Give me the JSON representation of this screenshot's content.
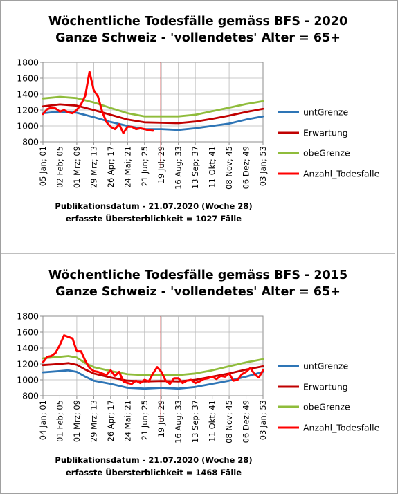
{
  "chart_data": [
    {
      "type": "line",
      "title": "Wöchentliche Todesfälle gemäss BFS - 2020",
      "subtitle": "Ganze Schweiz - 'vollendetes' Alter = 65+",
      "ylim": [
        800,
        1800
      ],
      "yticks": [
        "800",
        "1000",
        "1200",
        "1400",
        "1600",
        "1800"
      ],
      "xticks": [
        "05 Jan; 01",
        "02 Feb; 05",
        "01 Mrz; 09",
        "29 Mrz; 13",
        "26 Apr; 17",
        "24 Mai; 21",
        "21 Jun; 25",
        "19 Jul; 29",
        "16 Aug; 33",
        "13 Sep; 37",
        "11 Okt; 41",
        "08 Nov; 45",
        "06 Dez; 49",
        "03 Jan; 53"
      ],
      "x_weeks": [
        1,
        53
      ],
      "marker_week": 29,
      "grid": true,
      "legend_position": "right",
      "series": [
        {
          "name": "untGrenze",
          "color": "#2e75b6",
          "values": [
            [
              1,
              1160
            ],
            [
              5,
              1180
            ],
            [
              9,
              1165
            ],
            [
              13,
              1110
            ],
            [
              17,
              1050
            ],
            [
              21,
              1000
            ],
            [
              25,
              960
            ],
            [
              29,
              960
            ],
            [
              33,
              950
            ],
            [
              37,
              970
            ],
            [
              41,
              1000
            ],
            [
              45,
              1030
            ],
            [
              49,
              1080
            ],
            [
              53,
              1120
            ]
          ]
        },
        {
          "name": "Erwartung",
          "color": "#c00000",
          "values": [
            [
              1,
              1245
            ],
            [
              5,
              1270
            ],
            [
              9,
              1255
            ],
            [
              13,
              1200
            ],
            [
              17,
              1140
            ],
            [
              21,
              1080
            ],
            [
              25,
              1045
            ],
            [
              29,
              1040
            ],
            [
              33,
              1035
            ],
            [
              37,
              1055
            ],
            [
              41,
              1090
            ],
            [
              45,
              1130
            ],
            [
              49,
              1175
            ],
            [
              53,
              1215
            ]
          ]
        },
        {
          "name": "obeGrenze",
          "color": "#8fbc3b",
          "values": [
            [
              1,
              1345
            ],
            [
              5,
              1365
            ],
            [
              9,
              1350
            ],
            [
              13,
              1295
            ],
            [
              17,
              1225
            ],
            [
              21,
              1160
            ],
            [
              25,
              1120
            ],
            [
              29,
              1120
            ],
            [
              33,
              1120
            ],
            [
              37,
              1140
            ],
            [
              41,
              1185
            ],
            [
              45,
              1230
            ],
            [
              49,
              1275
            ],
            [
              53,
              1310
            ]
          ]
        },
        {
          "name": "Anzahl_Todesfalle",
          "color": "#ff0000",
          "values": [
            [
              1,
              1150
            ],
            [
              2,
              1210
            ],
            [
              3,
              1230
            ],
            [
              4,
              1220
            ],
            [
              5,
              1180
            ],
            [
              6,
              1200
            ],
            [
              7,
              1170
            ],
            [
              8,
              1160
            ],
            [
              9,
              1200
            ],
            [
              10,
              1270
            ],
            [
              11,
              1380
            ],
            [
              12,
              1680
            ],
            [
              13,
              1450
            ],
            [
              14,
              1370
            ],
            [
              15,
              1180
            ],
            [
              16,
              1050
            ],
            [
              17,
              990
            ],
            [
              18,
              960
            ],
            [
              19,
              1020
            ],
            [
              20,
              910
            ],
            [
              21,
              990
            ],
            [
              22,
              990
            ],
            [
              23,
              960
            ],
            [
              24,
              970
            ],
            [
              25,
              960
            ],
            [
              26,
              945
            ],
            [
              27,
              940
            ]
          ]
        }
      ]
    },
    {
      "type": "line",
      "title": "Wöchentliche Todesfälle gemäss BFS - 2015",
      "subtitle": "Ganze Schweiz - 'vollendetes' Alter = 65+",
      "ylim": [
        800,
        1800
      ],
      "yticks": [
        "800",
        "1000",
        "1200",
        "1400",
        "1600",
        "1800"
      ],
      "xticks": [
        "04 Jan; 01",
        "01 Feb; 05",
        "01 Mrz; 09",
        "29 Mrz; 13",
        "26 Apr; 17",
        "24 Mai; 21",
        "21 Jun; 25",
        "19 Jul; 29",
        "16 Aug; 33",
        "13 Sep; 37",
        "11 Okt; 41",
        "08 Nov; 45",
        "06 Dez; 49",
        "03 Jan; 53"
      ],
      "x_weeks": [
        1,
        53
      ],
      "marker_week": 29,
      "grid": true,
      "legend_position": "right",
      "series": [
        {
          "name": "untGrenze",
          "color": "#2e75b6",
          "values": [
            [
              1,
              1095
            ],
            [
              5,
              1110
            ],
            [
              7,
              1120
            ],
            [
              9,
              1100
            ],
            [
              11,
              1040
            ],
            [
              13,
              990
            ],
            [
              17,
              950
            ],
            [
              21,
              900
            ],
            [
              25,
              890
            ],
            [
              29,
              900
            ],
            [
              33,
              890
            ],
            [
              37,
              910
            ],
            [
              41,
              950
            ],
            [
              45,
              990
            ],
            [
              49,
              1040
            ],
            [
              53,
              1100
            ]
          ]
        },
        {
          "name": "Erwartung",
          "color": "#c00000",
          "values": [
            [
              1,
              1185
            ],
            [
              5,
              1200
            ],
            [
              7,
              1210
            ],
            [
              9,
              1190
            ],
            [
              11,
              1130
            ],
            [
              13,
              1080
            ],
            [
              17,
              1030
            ],
            [
              21,
              990
            ],
            [
              25,
              980
            ],
            [
              29,
              985
            ],
            [
              33,
              980
            ],
            [
              37,
              1000
            ],
            [
              41,
              1040
            ],
            [
              45,
              1080
            ],
            [
              49,
              1130
            ],
            [
              53,
              1170
            ]
          ]
        },
        {
          "name": "obeGrenze",
          "color": "#8fbc3b",
          "values": [
            [
              1,
              1270
            ],
            [
              5,
              1290
            ],
            [
              7,
              1300
            ],
            [
              9,
              1280
            ],
            [
              11,
              1210
            ],
            [
              13,
              1160
            ],
            [
              17,
              1110
            ],
            [
              21,
              1070
            ],
            [
              25,
              1060
            ],
            [
              29,
              1060
            ],
            [
              33,
              1060
            ],
            [
              37,
              1080
            ],
            [
              41,
              1120
            ],
            [
              45,
              1170
            ],
            [
              49,
              1220
            ],
            [
              53,
              1260
            ]
          ]
        },
        {
          "name": "Anzahl_Todesfalle",
          "color": "#ff0000",
          "values": [
            [
              1,
              1220
            ],
            [
              2,
              1290
            ],
            [
              3,
              1300
            ],
            [
              4,
              1340
            ],
            [
              5,
              1440
            ],
            [
              6,
              1560
            ],
            [
              7,
              1540
            ],
            [
              8,
              1520
            ],
            [
              9,
              1360
            ],
            [
              10,
              1360
            ],
            [
              11,
              1240
            ],
            [
              12,
              1150
            ],
            [
              13,
              1110
            ],
            [
              14,
              1100
            ],
            [
              15,
              1080
            ],
            [
              16,
              1060
            ],
            [
              17,
              1120
            ],
            [
              18,
              1050
            ],
            [
              19,
              1100
            ],
            [
              20,
              980
            ],
            [
              21,
              960
            ],
            [
              22,
              950
            ],
            [
              23,
              990
            ],
            [
              24,
              960
            ],
            [
              25,
              1000
            ],
            [
              26,
              980
            ],
            [
              27,
              1080
            ],
            [
              28,
              1160
            ],
            [
              29,
              1100
            ],
            [
              30,
              990
            ],
            [
              31,
              950
            ],
            [
              32,
              1020
            ],
            [
              33,
              1020
            ],
            [
              34,
              960
            ],
            [
              35,
              990
            ],
            [
              36,
              1000
            ],
            [
              37,
              960
            ],
            [
              38,
              980
            ],
            [
              39,
              1010
            ],
            [
              40,
              1020
            ],
            [
              41,
              1040
            ],
            [
              42,
              1010
            ],
            [
              43,
              1050
            ],
            [
              44,
              1040
            ],
            [
              45,
              1080
            ],
            [
              46,
              990
            ],
            [
              47,
              1000
            ],
            [
              48,
              1070
            ],
            [
              49,
              1100
            ],
            [
              50,
              1150
            ],
            [
              51,
              1070
            ],
            [
              52,
              1030
            ],
            [
              53,
              1120
            ]
          ]
        }
      ]
    }
  ],
  "panels": [
    {
      "title1": "Wöchentliche Todesfälle gemäss BFS - 2020",
      "title2": "Ganze Schweiz - 'vollendetes' Alter = 65+",
      "note1": "Publikationsdatum  - 21.07.2020  (Woche 28)",
      "note2": "erfasste Übersterblichkeit  = 1027 Fälle"
    },
    {
      "title1": "Wöchentliche Todesfälle gemäss BFS - 2015",
      "title2": "Ganze Schweiz - 'vollendetes' Alter = 65+",
      "note1": "Publikationsdatum  - 21.07.2020  (Woche 28)",
      "note2": "erfasste Übersterblichkeit  = 1468 Fälle"
    }
  ]
}
